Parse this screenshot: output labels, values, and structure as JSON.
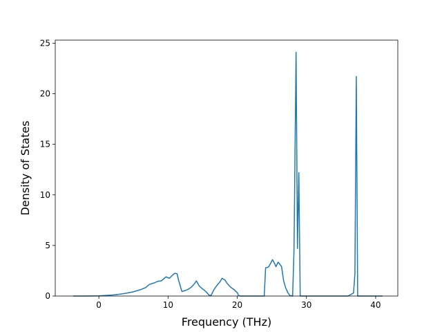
{
  "chart_data": {
    "type": "line",
    "title": "",
    "xlabel": "Frequency (THz)",
    "ylabel": "Density of States",
    "xlim": [
      -6.3,
      43.2
    ],
    "ylim": [
      0,
      25.3
    ],
    "x_ticks": [
      0,
      10,
      20,
      30,
      40
    ],
    "y_ticks": [
      0,
      5,
      10,
      15,
      20,
      25
    ],
    "grid": false,
    "legend": "none",
    "line_color": "#1f77b4",
    "series": [
      {
        "x": [
          -3.7,
          -2,
          0,
          2,
          3,
          4,
          5,
          6,
          6.8,
          7.3,
          8.0,
          8.5,
          9.0,
          9.3,
          9.7,
          10.2,
          10.7,
          11.0,
          11.3,
          11.5,
          12.0,
          12.5,
          13.0,
          13.4,
          13.8,
          14.1,
          14.5,
          15.0,
          15.3,
          15.6,
          15.9,
          16.2,
          16.6,
          17.0,
          17.5,
          17.8,
          18.2,
          18.6,
          19.0,
          19.5,
          20.0,
          20.2,
          20.5,
          21.5,
          23.0,
          23.9,
          24.1,
          24.5,
          24.8,
          25.1,
          25.4,
          25.6,
          25.9,
          26.2,
          26.4,
          26.7,
          27.0,
          27.3,
          27.6,
          28.0,
          28.2,
          28.5,
          28.7,
          28.9,
          29.1,
          29.3,
          29.5,
          30,
          32,
          34,
          36,
          36.8,
          37.0,
          37.2,
          37.4,
          37.6,
          38,
          39,
          41
        ],
        "y": [
          0,
          0,
          0.02,
          0.1,
          0.18,
          0.28,
          0.42,
          0.62,
          0.85,
          1.15,
          1.3,
          1.45,
          1.5,
          1.65,
          1.9,
          1.75,
          2.1,
          2.25,
          2.2,
          1.6,
          0.45,
          0.55,
          0.7,
          0.9,
          1.2,
          1.5,
          1.0,
          0.7,
          0.55,
          0.35,
          0.1,
          0.05,
          0.6,
          1.0,
          1.4,
          1.75,
          1.6,
          1.2,
          0.9,
          0.65,
          0.35,
          0.05,
          0,
          0,
          0,
          0,
          2.8,
          2.85,
          3.2,
          3.6,
          3.2,
          2.9,
          3.35,
          3.1,
          2.9,
          1.5,
          0.8,
          0.35,
          0.05,
          0,
          4.5,
          24.1,
          4.7,
          12.2,
          0,
          0,
          0,
          0,
          0,
          0,
          0,
          0.3,
          2.2,
          21.7,
          0,
          0,
          0,
          0,
          0
        ]
      }
    ]
  }
}
